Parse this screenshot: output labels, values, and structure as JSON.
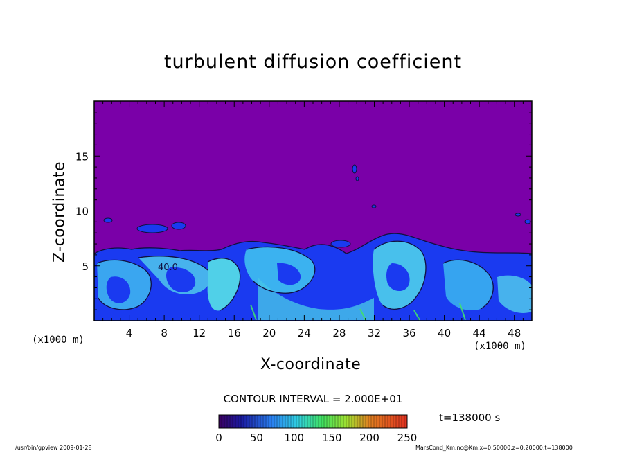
{
  "chart_data": {
    "type": "heatmap",
    "title": "turbulent diffusion coefficient",
    "xlabel": "X-coordinate",
    "ylabel": "Z-coordinate",
    "x_unit_label": "(x1000 m)",
    "xlim": [
      0,
      50
    ],
    "ylim": [
      0,
      20
    ],
    "xticks": [
      4,
      8,
      12,
      16,
      20,
      24,
      28,
      32,
      36,
      40,
      44,
      48
    ],
    "yticks": [
      5,
      10,
      15
    ],
    "contour_interval_text": "CONTOUR INTERVAL = 2.000E+01",
    "contour_label_value": "40.0",
    "colorbar": {
      "min": 0,
      "max": 250,
      "ticks": [
        0,
        50,
        100,
        150,
        200,
        250
      ]
    },
    "turbulent_layer_top_km_approx": 6.5,
    "background_color": "#7a00a8"
  },
  "time_label": "t=138000 s",
  "footer": {
    "left": "/usr/bin/gpview   2009-01-28",
    "right": "MarsCond_Km.nc@Km,x=0:50000,z=0:20000,t=138000"
  }
}
